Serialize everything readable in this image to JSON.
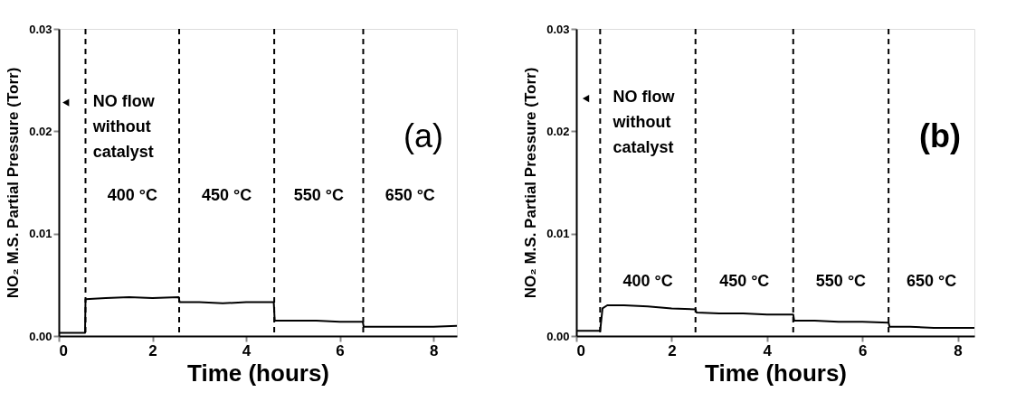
{
  "chart_data": [
    {
      "type": "line",
      "title": "(a)",
      "xlabel": "Time (hours)",
      "ylabel": "NO₂ M.S. Partial Pressure (Torr)",
      "series": [
        {
          "color": "#000000",
          "x": [
            0,
            0.3,
            0.56,
            0.57,
            1,
            1.5,
            2,
            2.56,
            2.58,
            3,
            3.5,
            4,
            4.59,
            4.61,
            5,
            5.5,
            6,
            6.49,
            6.51,
            7,
            7.5,
            8,
            8.5
          ],
          "values": [
            0.0003,
            0.0003,
            0.0003,
            0.0036,
            0.0037,
            0.0038,
            0.0037,
            0.0038,
            0.0033,
            0.0033,
            0.0032,
            0.0033,
            0.0033,
            0.0015,
            0.0015,
            0.0015,
            0.0014,
            0.0014,
            0.0009,
            0.0009,
            0.0009,
            0.0009,
            0.001
          ]
        }
      ],
      "xlim": [
        0,
        8.5
      ],
      "ylim": [
        0,
        0.03
      ],
      "xticks": [
        0,
        2,
        4,
        6,
        8
      ],
      "yticks": [
        {
          "value": 0,
          "label": "0.00"
        },
        {
          "value": 0.01,
          "label": "0.01"
        },
        {
          "value": 0.02,
          "label": "0.02"
        },
        {
          "value": 0.03,
          "label": "0.03"
        }
      ],
      "ref_lines": [
        {
          "axis": "x",
          "value": 0.57,
          "color": "#000000",
          "line_style": "dashed"
        },
        {
          "axis": "x",
          "value": 2.57,
          "color": "#000000",
          "line_style": "dashed"
        },
        {
          "axis": "x",
          "value": 4.6,
          "color": "#000000",
          "line_style": "dashed"
        },
        {
          "axis": "x",
          "value": 6.5,
          "color": "#000000",
          "line_style": "dashed"
        }
      ],
      "annotations": [
        {
          "text": "NO flow\nwithout\ncatalyst",
          "x": 0.15,
          "y": 0.0228
        },
        "400 °C",
        "450 °C",
        "550 °C",
        "650 °C"
      ],
      "grid": false,
      "marker": "none",
      "line_style": "solid"
    },
    {
      "type": "line",
      "title": "(b)",
      "xlabel": "Time (hours)",
      "ylabel": "NO₂ M.S. Partial Pressure (Torr)",
      "series": [
        {
          "color": "#000000",
          "x": [
            0,
            0.3,
            0.5,
            0.55,
            0.65,
            1,
            1.5,
            2,
            2.5,
            2.52,
            3,
            3.5,
            4,
            4.55,
            4.57,
            5,
            5.5,
            6,
            6.55,
            6.57,
            7,
            7.5,
            8,
            8.35
          ],
          "values": [
            0.0005,
            0.0005,
            0.0005,
            0.0027,
            0.003,
            0.003,
            0.0029,
            0.0027,
            0.0026,
            0.0023,
            0.0022,
            0.0022,
            0.0021,
            0.0021,
            0.0015,
            0.0015,
            0.0014,
            0.0014,
            0.0013,
            0.0009,
            0.0009,
            0.0008,
            0.0008,
            0.0008
          ]
        }
      ],
      "xlim": [
        0,
        8.35
      ],
      "ylim": [
        0,
        0.03
      ],
      "xticks": [
        0,
        2,
        4,
        6,
        8
      ],
      "yticks": [
        {
          "value": 0,
          "label": "0.00"
        },
        {
          "value": 0.01,
          "label": "0.01"
        },
        {
          "value": 0.02,
          "label": "0.02"
        },
        {
          "value": 0.03,
          "label": "0.03"
        }
      ],
      "ref_lines": [
        {
          "axis": "x",
          "value": 0.5,
          "color": "#000000",
          "line_style": "dashed"
        },
        {
          "axis": "x",
          "value": 2.5,
          "color": "#000000",
          "line_style": "dashed"
        },
        {
          "axis": "x",
          "value": 4.55,
          "color": "#000000",
          "line_style": "dashed"
        },
        {
          "axis": "x",
          "value": 6.55,
          "color": "#000000",
          "line_style": "dashed"
        }
      ],
      "annotations": [
        {
          "text": "NO flow\nwithout\ncatalyst",
          "x": 0.2,
          "y": 0.0232
        },
        "400 °C",
        "450 °C",
        "550 °C",
        "650 °C"
      ],
      "grid": false,
      "marker": "none",
      "line_style": "solid"
    }
  ]
}
